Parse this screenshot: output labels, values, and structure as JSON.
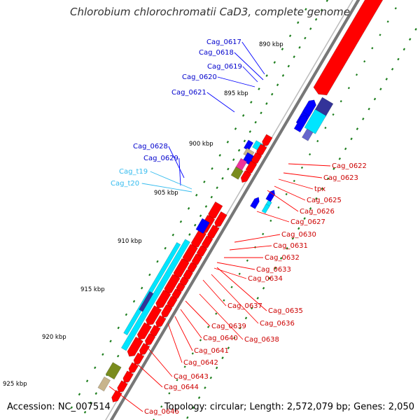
{
  "title": "Chlorobium chlorochromatii CaD3, complete genome",
  "accession_label": "Accession: NC_007514",
  "summary_label": "Topology: circular; Length: 2,572,079 bp; Genes: 2,050",
  "colors": {
    "forward_gene": "#ff0000",
    "reverse_gene": "#0000ff",
    "reverse_label": "#0000cc",
    "forward_label": "#cc0000",
    "rna": "#00e5ff",
    "rna_label": "#33bbee",
    "backbone": "#999999",
    "tick": "#1f7f1f",
    "olive": "#7a8c1e",
    "dark_blue": "#333399",
    "pink": "#ee3399",
    "tan": "#c8b48c"
  },
  "scale_labels": [
    {
      "text": "890 kbp"
    },
    {
      "text": "895 kbp"
    },
    {
      "text": "900 kbp"
    },
    {
      "text": "905 kbp"
    },
    {
      "text": "910 kbp"
    },
    {
      "text": "915 kbp"
    },
    {
      "text": "920 kbp"
    },
    {
      "text": "925 kbp"
    }
  ],
  "gene_labels": [
    {
      "name": "Cag_0617",
      "strand": "reverse"
    },
    {
      "name": "Cag_0618",
      "strand": "reverse"
    },
    {
      "name": "Cag_0619",
      "strand": "reverse"
    },
    {
      "name": "Cag_0620",
      "strand": "reverse"
    },
    {
      "name": "Cag_0621",
      "strand": "reverse"
    },
    {
      "name": "Cag_0628",
      "strand": "reverse"
    },
    {
      "name": "Cag_0629",
      "strand": "reverse"
    },
    {
      "name": "Cag_t19",
      "strand": "rna"
    },
    {
      "name": "Cag_t20",
      "strand": "rna"
    },
    {
      "name": "Cag_0622",
      "strand": "forward"
    },
    {
      "name": "Cag_0623",
      "strand": "forward"
    },
    {
      "name": "tpx",
      "strand": "forward"
    },
    {
      "name": "Cag_0625",
      "strand": "forward"
    },
    {
      "name": "Cag_0626",
      "strand": "forward"
    },
    {
      "name": "Cag_0627",
      "strand": "forward"
    },
    {
      "name": "Cag_0630",
      "strand": "forward"
    },
    {
      "name": "Cag_0631",
      "strand": "forward"
    },
    {
      "name": "Cag_0632",
      "strand": "forward"
    },
    {
      "name": "Cag_0633",
      "strand": "forward"
    },
    {
      "name": "Cag_0634",
      "strand": "forward"
    },
    {
      "name": "Cag_0635",
      "strand": "forward"
    },
    {
      "name": "Cag_0636",
      "strand": "forward"
    },
    {
      "name": "Cag_0637",
      "strand": "forward"
    },
    {
      "name": "Cag_0638",
      "strand": "forward"
    },
    {
      "name": "Cag_0639",
      "strand": "forward"
    },
    {
      "name": "Cag_0640",
      "strand": "forward"
    },
    {
      "name": "Cag_0641",
      "strand": "forward"
    },
    {
      "name": "Cag_0642",
      "strand": "forward"
    },
    {
      "name": "Cag_0643",
      "strand": "forward"
    },
    {
      "name": "Cag_0644",
      "strand": "forward"
    },
    {
      "name": "Cag_0646",
      "strand": "forward"
    }
  ]
}
